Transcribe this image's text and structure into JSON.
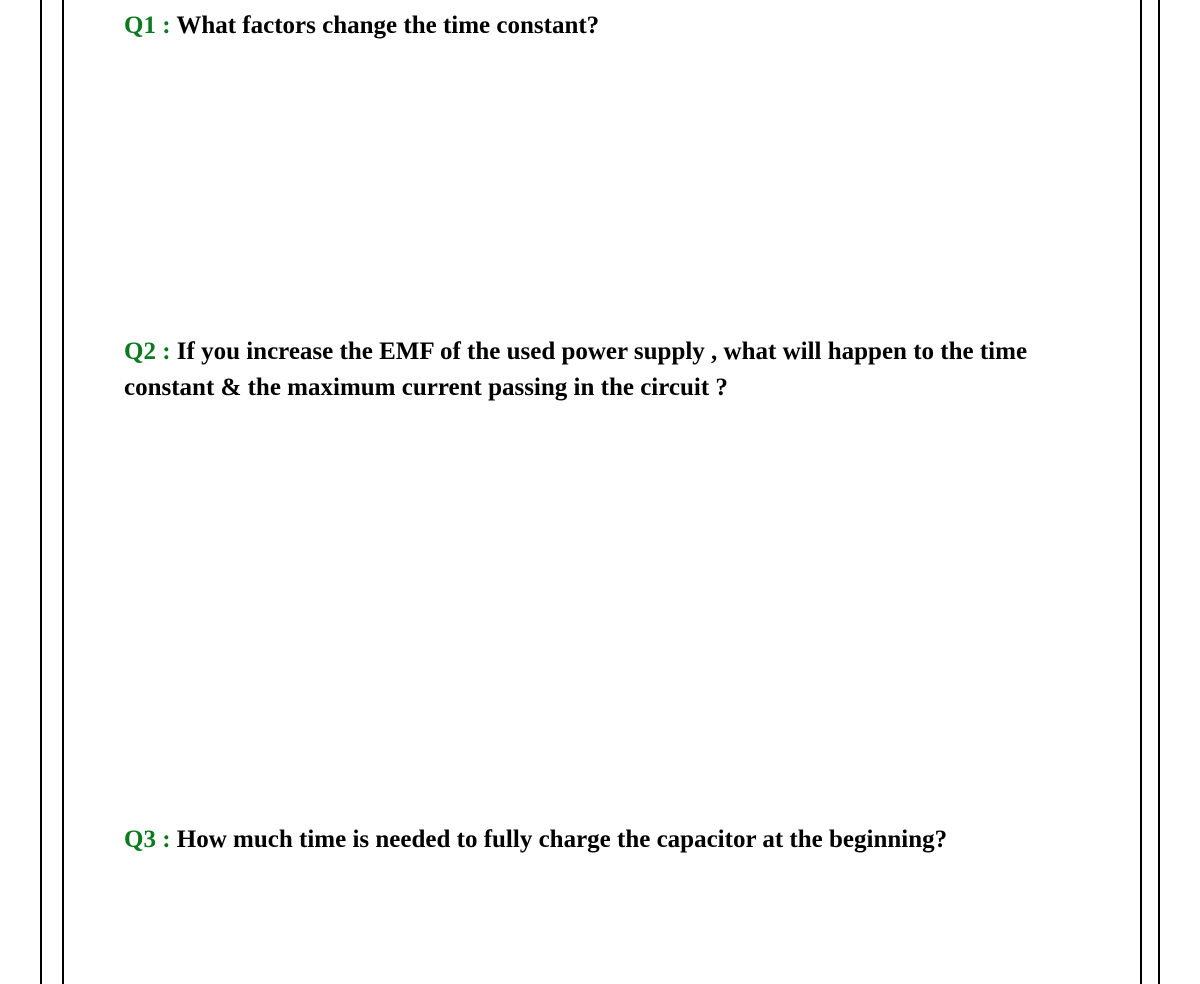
{
  "colors": {
    "label": "#0a7a1f",
    "text": "#000000",
    "border": "#000000",
    "background": "#ffffff"
  },
  "typography": {
    "font_family": "Times New Roman",
    "font_size_pt": 19,
    "font_weight": "bold",
    "line_height": 1.45
  },
  "questions": [
    {
      "id": "q1",
      "label": "Q1 :",
      "text": " What factors change the time constant?"
    },
    {
      "id": "q2",
      "label": "Q2 :",
      "text": " If you increase the EMF of the used power supply , what will happen to the time constant & the maximum current passing in the circuit ?"
    },
    {
      "id": "q3",
      "label": "Q3 :",
      "text": " How much time is needed to fully charge the capacitor at the beginning?"
    }
  ]
}
